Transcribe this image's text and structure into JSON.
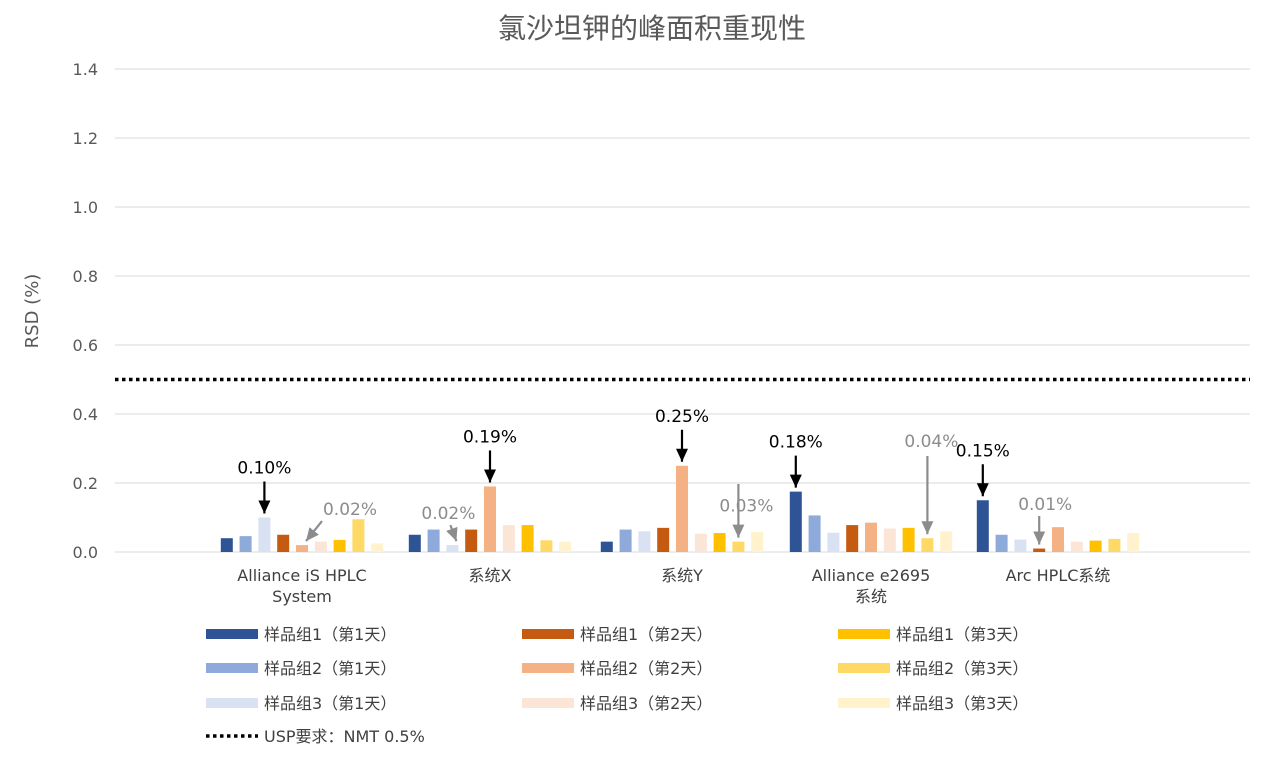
{
  "chart_data": {
    "type": "bar",
    "title": "氯沙坦钾的峰面积重现性",
    "ylabel": "RSD (%)",
    "xlabel": "",
    "ylim": [
      0,
      1.4
    ],
    "yticks": [
      "0.0",
      "0.2",
      "0.4",
      "0.6",
      "0.8",
      "1.0",
      "1.2",
      "1.4"
    ],
    "grid": true,
    "legend_position": "bottom",
    "categories": [
      [
        "Alliance iS HPLC",
        "System"
      ],
      [
        "系统X"
      ],
      [
        "系统Y"
      ],
      [
        "Alliance e2695",
        "系统"
      ],
      [
        "Arc HPLC系统"
      ]
    ],
    "series": [
      {
        "name": "样品组1（第1天）",
        "color": "#2f5496",
        "values": [
          0.04,
          0.05,
          0.03,
          0.175,
          0.15
        ]
      },
      {
        "name": "样品组2（第1天）",
        "color": "#8eaadb",
        "values": [
          0.046,
          0.065,
          0.065,
          0.106,
          0.05
        ]
      },
      {
        "name": "样品组3（第1天）",
        "color": "#d9e2f3",
        "values": [
          0.1,
          0.02,
          0.06,
          0.056,
          0.036
        ]
      },
      {
        "name": "样品组1（第2天）",
        "color": "#c55a11",
        "values": [
          0.05,
          0.065,
          0.07,
          0.078,
          0.01
        ]
      },
      {
        "name": "样品组2（第2天）",
        "color": "#f4b183",
        "values": [
          0.02,
          0.19,
          0.25,
          0.085,
          0.072
        ]
      },
      {
        "name": "样品组3（第2天）",
        "color": "#fbe5d6",
        "values": [
          0.03,
          0.078,
          0.053,
          0.068,
          0.03
        ]
      },
      {
        "name": "样品组1（第3天）",
        "color": "#ffc000",
        "values": [
          0.035,
          0.078,
          0.055,
          0.07,
          0.033
        ]
      },
      {
        "name": "样品组2（第3天）",
        "color": "#ffd966",
        "values": [
          0.095,
          0.034,
          0.03,
          0.04,
          0.038
        ]
      },
      {
        "name": "样品组3（第3天）",
        "color": "#fff2cc",
        "values": [
          0.025,
          0.03,
          0.058,
          0.06,
          0.055
        ]
      }
    ],
    "reference_line": {
      "name": "USP要求：NMT 0.5%",
      "value": 0.5,
      "style": "dotted",
      "color": "#000000"
    },
    "annotations": [
      {
        "text": "0.10%",
        "category": 0,
        "series": 2,
        "color": "#000000",
        "arrow": "down"
      },
      {
        "text": "0.02%",
        "category": 0,
        "series": 4,
        "color": "#8c8c8c",
        "arrow": "diagonal"
      },
      {
        "text": "0.02%",
        "category": 1,
        "series": 2,
        "color": "#8c8c8c",
        "arrow": "diagonal"
      },
      {
        "text": "0.19%",
        "category": 1,
        "series": 4,
        "color": "#000000",
        "arrow": "down"
      },
      {
        "text": "0.25%",
        "category": 2,
        "series": 4,
        "color": "#000000",
        "arrow": "down"
      },
      {
        "text": "0.03%",
        "category": 2,
        "series": 7,
        "color": "#8c8c8c",
        "arrow": "down"
      },
      {
        "text": "0.18%",
        "category": 3,
        "series": 0,
        "color": "#000000",
        "arrow": "down"
      },
      {
        "text": "0.04%",
        "category": 3,
        "series": 7,
        "color": "#8c8c8c",
        "arrow": "down"
      },
      {
        "text": "0.15%",
        "category": 4,
        "series": 0,
        "color": "#000000",
        "arrow": "down"
      },
      {
        "text": "0.01%",
        "category": 4,
        "series": 3,
        "color": "#8c8c8c",
        "arrow": "down"
      }
    ]
  }
}
